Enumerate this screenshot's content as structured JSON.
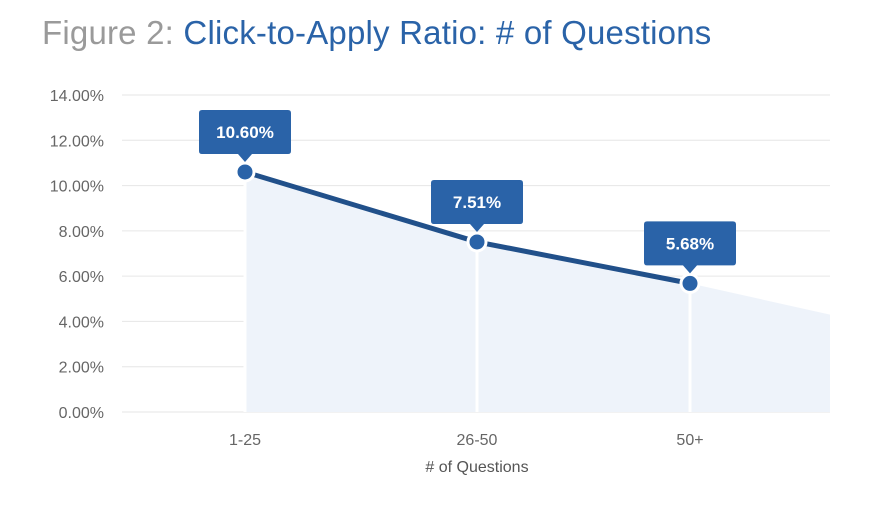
{
  "title": {
    "prefix": "Figure 2:",
    "main": "Click-to-Apply Ratio: # of Questions"
  },
  "colors": {
    "title_prefix": "#9a9a9a",
    "title_main": "#2a63a8",
    "line": "#21508a",
    "point": "#2a63a8",
    "label_bg": "#2a63a8",
    "area": "#eef3fa",
    "grid": "#e6e6e6"
  },
  "chart_data": {
    "type": "line",
    "title": "Click-to-Apply Ratio: # of Questions",
    "xlabel": "# of Questions",
    "ylabel": "",
    "categories": [
      "1-25",
      "26-50",
      "50+"
    ],
    "values": [
      10.6,
      7.51,
      5.68
    ],
    "data_labels": [
      "10.60%",
      "7.51%",
      "5.68%"
    ],
    "ylim": [
      0,
      14
    ],
    "yticks": [
      "0.00%",
      "2.00%",
      "4.00%",
      "6.00%",
      "8.00%",
      "10.00%",
      "12.00%",
      "14.00%"
    ],
    "trend_end_value": 4.3,
    "grid": true,
    "legend": "none",
    "area_fill": true
  }
}
